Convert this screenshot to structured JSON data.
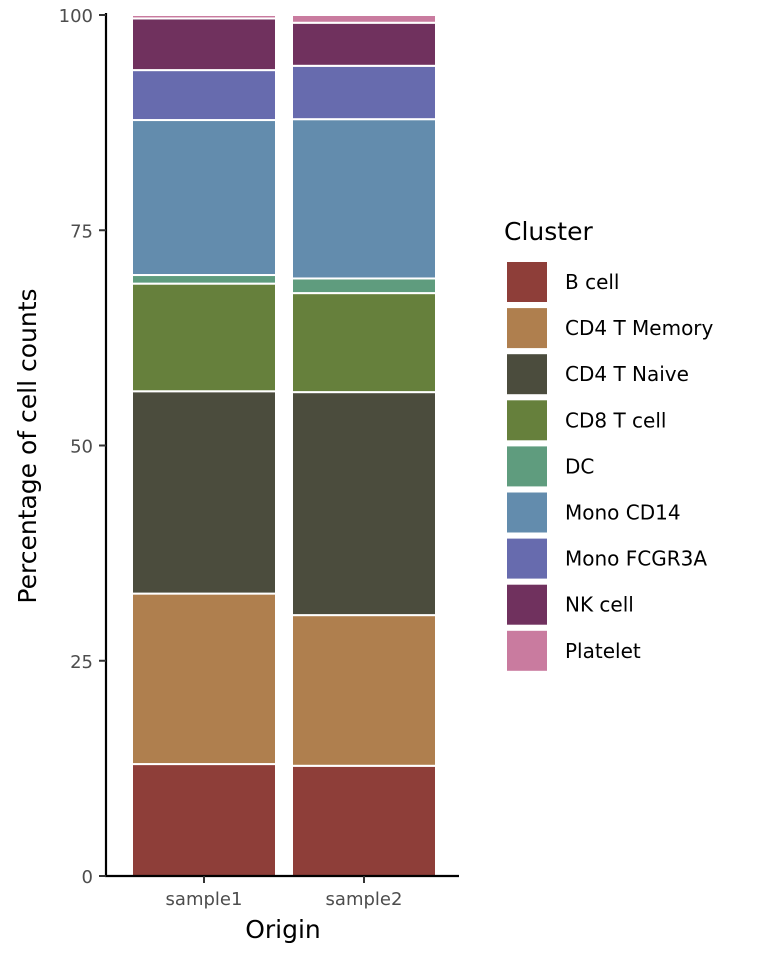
{
  "chart_data": {
    "type": "bar",
    "stacked": true,
    "categories": [
      "sample1",
      "sample2"
    ],
    "xlabel": "Origin",
    "ylabel": "Percentage of cell counts",
    "ylim": [
      0,
      100
    ],
    "yticks": [
      0,
      25,
      50,
      75,
      100
    ],
    "grid": false,
    "legend": {
      "title": "Cluster",
      "position": "right"
    },
    "series": [
      {
        "name": "B cell",
        "color": "#8E3E39",
        "values": [
          13.0,
          12.8
        ]
      },
      {
        "name": "CD4 T Memory",
        "color": "#AF7F4E",
        "values": [
          19.8,
          17.5
        ]
      },
      {
        "name": "CD4 T Naive",
        "color": "#4B4C3D",
        "values": [
          23.5,
          25.9
        ]
      },
      {
        "name": "CD8 T cell",
        "color": "#66803C",
        "values": [
          12.5,
          11.5
        ]
      },
      {
        "name": "DC",
        "color": "#5F9C7E",
        "values": [
          1.0,
          1.7
        ]
      },
      {
        "name": "Mono CD14",
        "color": "#638CAD",
        "values": [
          18.0,
          18.5
        ]
      },
      {
        "name": "Mono FCGR3A",
        "color": "#676BAE",
        "values": [
          5.8,
          6.2
        ]
      },
      {
        "name": "NK cell",
        "color": "#70315E",
        "values": [
          6.0,
          5.0
        ]
      },
      {
        "name": "Platelet",
        "color": "#C97B9F",
        "values": [
          0.4,
          0.9
        ]
      }
    ]
  }
}
